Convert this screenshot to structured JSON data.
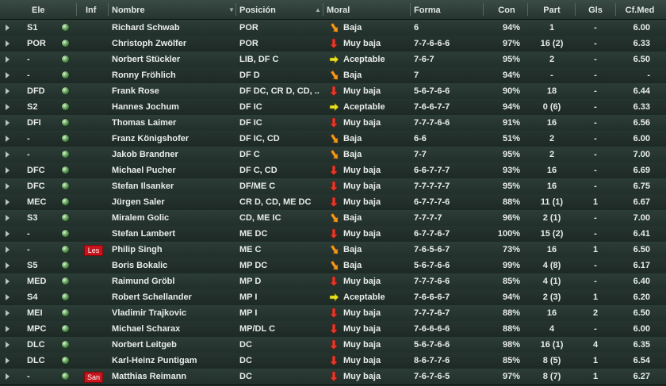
{
  "colors": {
    "muy_baja_arrow": "#e23a2a",
    "baja_arrow": "#f29a1e",
    "aceptable_arrow": "#e8e020",
    "injury_tag": "#c8141c"
  },
  "headers": {
    "ele": "Ele",
    "inf": "Inf",
    "nombre": "Nombre",
    "posicion": "Posición",
    "moral": "Moral",
    "forma": "Forma",
    "con": "Con",
    "part": "Part",
    "gls": "Gls",
    "cfmed": "Cf.Med"
  },
  "rows": [
    {
      "ele": "S1",
      "inf": "",
      "nombre": "Richard Schwab",
      "posicion": "POR",
      "moral": "Baja",
      "moral_icon": "arrow-down-right-icon",
      "forma": "6",
      "con": "94%",
      "part": "1",
      "gls": "-",
      "cfmed": "6.00"
    },
    {
      "ele": "POR",
      "inf": "",
      "nombre": "Christoph Zwölfer",
      "posicion": "POR",
      "moral": "Muy baja",
      "moral_icon": "arrow-down-icon",
      "forma": "7-7-6-6-6",
      "con": "97%",
      "part": "16 (2)",
      "gls": "-",
      "cfmed": "6.33"
    },
    {
      "ele": "-",
      "inf": "",
      "nombre": "Norbert Stückler",
      "posicion": "LIB, DF C",
      "moral": "Aceptable",
      "moral_icon": "arrow-right-icon",
      "forma": "7-6-7",
      "con": "95%",
      "part": "2",
      "gls": "-",
      "cfmed": "6.50"
    },
    {
      "ele": "-",
      "inf": "",
      "nombre": "Ronny Fröhlich",
      "posicion": "DF D",
      "moral": "Baja",
      "moral_icon": "arrow-down-right-icon",
      "forma": "7",
      "con": "94%",
      "part": "-",
      "gls": "-",
      "cfmed": "-"
    },
    {
      "ele": "DFD",
      "inf": "",
      "nombre": "Frank Rose",
      "posicion": "DF DC, CR D, CD, ..",
      "moral": "Muy baja",
      "moral_icon": "arrow-down-icon",
      "forma": "5-6-7-6-6",
      "con": "90%",
      "part": "18",
      "gls": "-",
      "cfmed": "6.44"
    },
    {
      "ele": "S2",
      "inf": "",
      "nombre": "Hannes Jochum",
      "posicion": "DF IC",
      "moral": "Aceptable",
      "moral_icon": "arrow-right-icon",
      "forma": "7-6-6-7-7",
      "con": "94%",
      "part": "0 (6)",
      "gls": "-",
      "cfmed": "6.33"
    },
    {
      "ele": "DFI",
      "inf": "",
      "nombre": "Thomas Laimer",
      "posicion": "DF IC",
      "moral": "Muy baja",
      "moral_icon": "arrow-down-icon",
      "forma": "7-7-7-6-6",
      "con": "91%",
      "part": "16",
      "gls": "-",
      "cfmed": "6.56"
    },
    {
      "ele": "-",
      "inf": "",
      "nombre": "Franz Königshofer",
      "posicion": "DF IC, CD",
      "moral": "Baja",
      "moral_icon": "arrow-down-right-icon",
      "forma": "6-6",
      "con": "51%",
      "part": "2",
      "gls": "-",
      "cfmed": "6.00"
    },
    {
      "ele": "-",
      "inf": "",
      "nombre": "Jakob Brandner",
      "posicion": "DF C",
      "moral": "Baja",
      "moral_icon": "arrow-down-right-icon",
      "forma": "7-7",
      "con": "95%",
      "part": "2",
      "gls": "-",
      "cfmed": "7.00"
    },
    {
      "ele": "DFC",
      "inf": "",
      "nombre": "Michael Pucher",
      "posicion": "DF C, CD",
      "moral": "Muy baja",
      "moral_icon": "arrow-down-icon",
      "forma": "6-6-7-7-7",
      "con": "93%",
      "part": "16",
      "gls": "-",
      "cfmed": "6.69"
    },
    {
      "ele": "DFC",
      "inf": "",
      "nombre": "Stefan Ilsanker",
      "posicion": "DF/ME C",
      "moral": "Muy baja",
      "moral_icon": "arrow-down-icon",
      "forma": "7-7-7-7-7",
      "con": "95%",
      "part": "16",
      "gls": "-",
      "cfmed": "6.75"
    },
    {
      "ele": "MEC",
      "inf": "",
      "nombre": "Jürgen Saler",
      "posicion": "CR D, CD, ME DC",
      "moral": "Muy baja",
      "moral_icon": "arrow-down-icon",
      "forma": "6-7-7-7-6",
      "con": "88%",
      "part": "11 (1)",
      "gls": "1",
      "cfmed": "6.67"
    },
    {
      "ele": "S3",
      "inf": "",
      "nombre": "Miralem Golic",
      "posicion": "CD, ME IC",
      "moral": "Baja",
      "moral_icon": "arrow-down-right-icon",
      "forma": "7-7-7-7",
      "con": "96%",
      "part": "2 (1)",
      "gls": "-",
      "cfmed": "7.00"
    },
    {
      "ele": "-",
      "inf": "",
      "nombre": "Stefan Lambert",
      "posicion": "ME DC",
      "moral": "Muy baja",
      "moral_icon": "arrow-down-icon",
      "forma": "6-7-7-6-7",
      "con": "100%",
      "part": "15 (2)",
      "gls": "-",
      "cfmed": "6.41"
    },
    {
      "ele": "-",
      "inf": "Les",
      "nombre": "Philip Singh",
      "posicion": "ME C",
      "moral": "Baja",
      "moral_icon": "arrow-down-right-icon",
      "forma": "7-6-5-6-7",
      "con": "73%",
      "part": "16",
      "gls": "1",
      "cfmed": "6.50"
    },
    {
      "ele": "S5",
      "inf": "",
      "nombre": "Boris Bokalic",
      "posicion": "MP DC",
      "moral": "Baja",
      "moral_icon": "arrow-down-right-icon",
      "forma": "5-6-7-6-6",
      "con": "99%",
      "part": "4 (8)",
      "gls": "-",
      "cfmed": "6.17"
    },
    {
      "ele": "MED",
      "inf": "",
      "nombre": "Raimund Gröbl",
      "posicion": "MP D",
      "moral": "Muy baja",
      "moral_icon": "arrow-down-icon",
      "forma": "7-7-7-6-6",
      "con": "85%",
      "part": "4 (1)",
      "gls": "-",
      "cfmed": "6.40"
    },
    {
      "ele": "S4",
      "inf": "",
      "nombre": "Robert Schellander",
      "posicion": "MP I",
      "moral": "Aceptable",
      "moral_icon": "arrow-right-icon",
      "forma": "7-6-6-6-7",
      "con": "94%",
      "part": "2 (3)",
      "gls": "1",
      "cfmed": "6.20"
    },
    {
      "ele": "MEI",
      "inf": "",
      "nombre": "Vladimir Trajkovic",
      "posicion": "MP I",
      "moral": "Muy baja",
      "moral_icon": "arrow-down-icon",
      "forma": "7-7-7-6-7",
      "con": "88%",
      "part": "16",
      "gls": "2",
      "cfmed": "6.50"
    },
    {
      "ele": "MPC",
      "inf": "",
      "nombre": "Michael Scharax",
      "posicion": "MP/DL C",
      "moral": "Muy baja",
      "moral_icon": "arrow-down-icon",
      "forma": "7-6-6-6-6",
      "con": "88%",
      "part": "4",
      "gls": "-",
      "cfmed": "6.00"
    },
    {
      "ele": "DLC",
      "inf": "",
      "nombre": "Norbert Leitgeb",
      "posicion": "DC",
      "moral": "Muy baja",
      "moral_icon": "arrow-down-icon",
      "forma": "5-6-7-6-6",
      "con": "98%",
      "part": "16 (1)",
      "gls": "4",
      "cfmed": "6.35"
    },
    {
      "ele": "DLC",
      "inf": "",
      "nombre": "Karl-Heinz Puntigam",
      "posicion": "DC",
      "moral": "Muy baja",
      "moral_icon": "arrow-down-icon",
      "forma": "8-6-7-7-6",
      "con": "85%",
      "part": "8 (5)",
      "gls": "1",
      "cfmed": "6.54"
    },
    {
      "ele": "-",
      "inf": "San",
      "nombre": "Matthias Reimann",
      "posicion": "DC",
      "moral": "Muy baja",
      "moral_icon": "arrow-down-icon",
      "forma": "7-6-7-6-5",
      "con": "97%",
      "part": "8 (7)",
      "gls": "1",
      "cfmed": "6.27"
    }
  ]
}
